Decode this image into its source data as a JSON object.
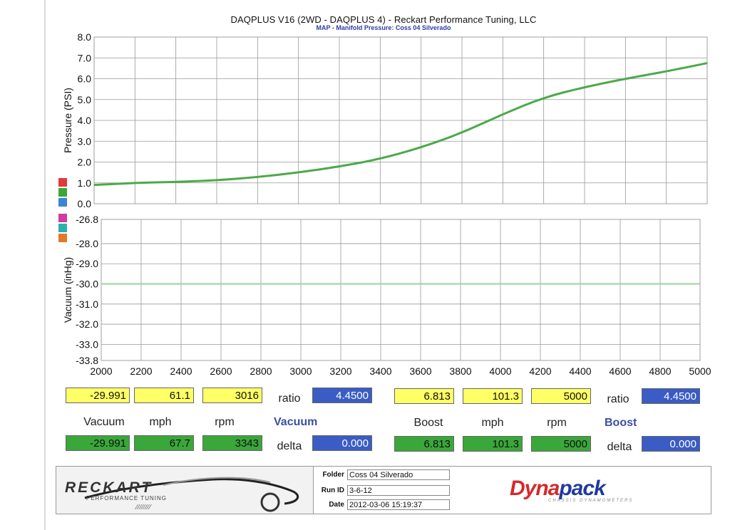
{
  "header": {
    "title": "DAQPLUS V16 (2WD - DAQPLUS 4) - Reckart Performance Tuning, LLC",
    "subtitle": "MAP - Manifold Pressure: Coss 04 Silverado"
  },
  "legend_swatches": [
    "#e03a3a",
    "#3aa73a",
    "#3a86d4",
    "#d43aa0",
    "#2ab0b0",
    "#e07a2a"
  ],
  "chart_data": [
    {
      "type": "line",
      "ylabel": "Pressure (PSI)",
      "ylim": [
        0,
        8
      ],
      "xlim": [
        2000,
        5000
      ],
      "y_ticks": [
        "8.0",
        "7.0",
        "6.0",
        "5.0",
        "4.0",
        "3.0",
        "2.0",
        "1.0",
        "0.0"
      ],
      "grid": true,
      "series": [
        {
          "color": "#4aaa4a",
          "x": [
            2000,
            2200,
            2400,
            2600,
            2800,
            3000,
            3200,
            3400,
            3600,
            3800,
            4000,
            4200,
            4400,
            4600,
            4800,
            5000
          ],
          "y": [
            0.9,
            1.0,
            1.05,
            1.12,
            1.28,
            1.5,
            1.78,
            2.15,
            2.7,
            3.4,
            4.3,
            5.1,
            5.6,
            6.0,
            6.35,
            6.75
          ]
        }
      ]
    },
    {
      "type": "line",
      "ylabel": "Vacuum (inHg)",
      "ylim": [
        -33.8,
        -26.8
      ],
      "xlim": [
        2000,
        5000
      ],
      "y_ticks": [
        "-26.8",
        "-28.0",
        "-29.0",
        "-30.0",
        "-31.0",
        "-32.0",
        "-33.0",
        "-33.8"
      ],
      "x_ticks": [
        "2000",
        "2200",
        "2400",
        "2600",
        "2800",
        "3000",
        "3200",
        "3400",
        "3600",
        "3800",
        "4000",
        "4200",
        "4400",
        "4600",
        "4800",
        "5000"
      ],
      "grid": true,
      "series": [
        {
          "color": "#9ad49a",
          "x": [
            2000,
            5000
          ],
          "y": [
            -30.0,
            -30.0
          ]
        }
      ]
    }
  ],
  "readout": {
    "left": {
      "row1": [
        "-29.991",
        "61.1",
        "3016"
      ],
      "labels": [
        "Vacuum",
        "mph",
        "rpm"
      ],
      "row2": [
        "-29.991",
        "67.7",
        "3343"
      ],
      "ratio_label": "ratio",
      "ratio_value": "4.4500",
      "group_label": "Vacuum",
      "delta_label": "delta",
      "delta_value": "0.000"
    },
    "right": {
      "row1": [
        "6.813",
        "101.3",
        "5000"
      ],
      "labels": [
        "Boost",
        "mph",
        "rpm"
      ],
      "row2": [
        "6.813",
        "101.3",
        "5000"
      ],
      "ratio_label": "ratio",
      "ratio_value": "4.4500",
      "group_label": "Boost",
      "delta_label": "delta",
      "delta_value": "0.000"
    }
  },
  "footer": {
    "logo_text": "RECKART",
    "logo_sub": "PERFORMANCE TUNING",
    "folder_label": "Folder",
    "folder_value": "Coss 04 Silverado",
    "runid_label": "Run ID",
    "runid_value": "3-6-12",
    "date_label": "Date",
    "date_value": "2012-03-06 15:19:37",
    "brand_a": "Dyna",
    "brand_b": "pack",
    "brand_sub": "CHASSIS DYNAMOMETERS"
  }
}
